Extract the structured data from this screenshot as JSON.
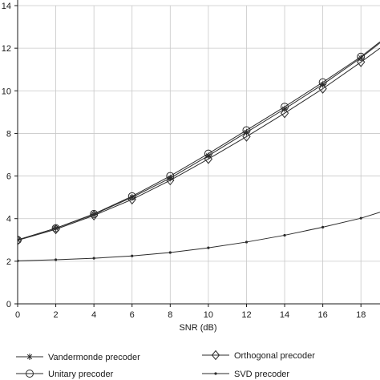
{
  "chart_data": {
    "type": "line",
    "title": "",
    "xlabel": "SNR (dB)",
    "ylabel": "",
    "xlim": [
      0,
      19
    ],
    "ylim": [
      0,
      14
    ],
    "x_ticks": [
      0,
      2,
      4,
      6,
      8,
      10,
      12,
      14,
      16,
      18
    ],
    "y_ticks": [
      0,
      2,
      4,
      6,
      8,
      10,
      12,
      14
    ],
    "grid": true,
    "legend_position": "bottom",
    "colors": {
      "line": "#2b2b2b",
      "grid": "#c8c8c8",
      "axis": "#1a1a1a"
    },
    "series": [
      {
        "name": "Vandermonde precoder",
        "marker": "asterisk",
        "x": [
          0,
          2,
          4,
          6,
          8,
          10,
          12,
          14,
          16,
          18,
          19
        ],
        "y": [
          3.0,
          3.55,
          4.2,
          5.0,
          5.9,
          6.95,
          8.05,
          9.15,
          10.3,
          11.55,
          12.25
        ]
      },
      {
        "name": "Unitary precoder",
        "marker": "circle",
        "x": [
          0,
          2,
          4,
          6,
          8,
          10,
          12,
          14,
          16,
          18,
          19
        ],
        "y": [
          3.0,
          3.55,
          4.22,
          5.05,
          6.0,
          7.05,
          8.15,
          9.25,
          10.4,
          11.6,
          12.3
        ]
      },
      {
        "name": "Orthogonal precoder",
        "marker": "diamond",
        "x": [
          0,
          2,
          4,
          6,
          8,
          10,
          12,
          14,
          16,
          18,
          19
        ],
        "y": [
          2.98,
          3.5,
          4.15,
          4.9,
          5.8,
          6.8,
          7.85,
          8.95,
          10.1,
          11.35,
          12.0
        ]
      },
      {
        "name": "SVD precoder",
        "marker": "dot",
        "x": [
          0,
          2,
          4,
          6,
          8,
          10,
          12,
          14,
          16,
          18,
          19
        ],
        "y": [
          2.02,
          2.07,
          2.14,
          2.25,
          2.41,
          2.63,
          2.9,
          3.22,
          3.6,
          4.02,
          4.3
        ]
      }
    ]
  }
}
